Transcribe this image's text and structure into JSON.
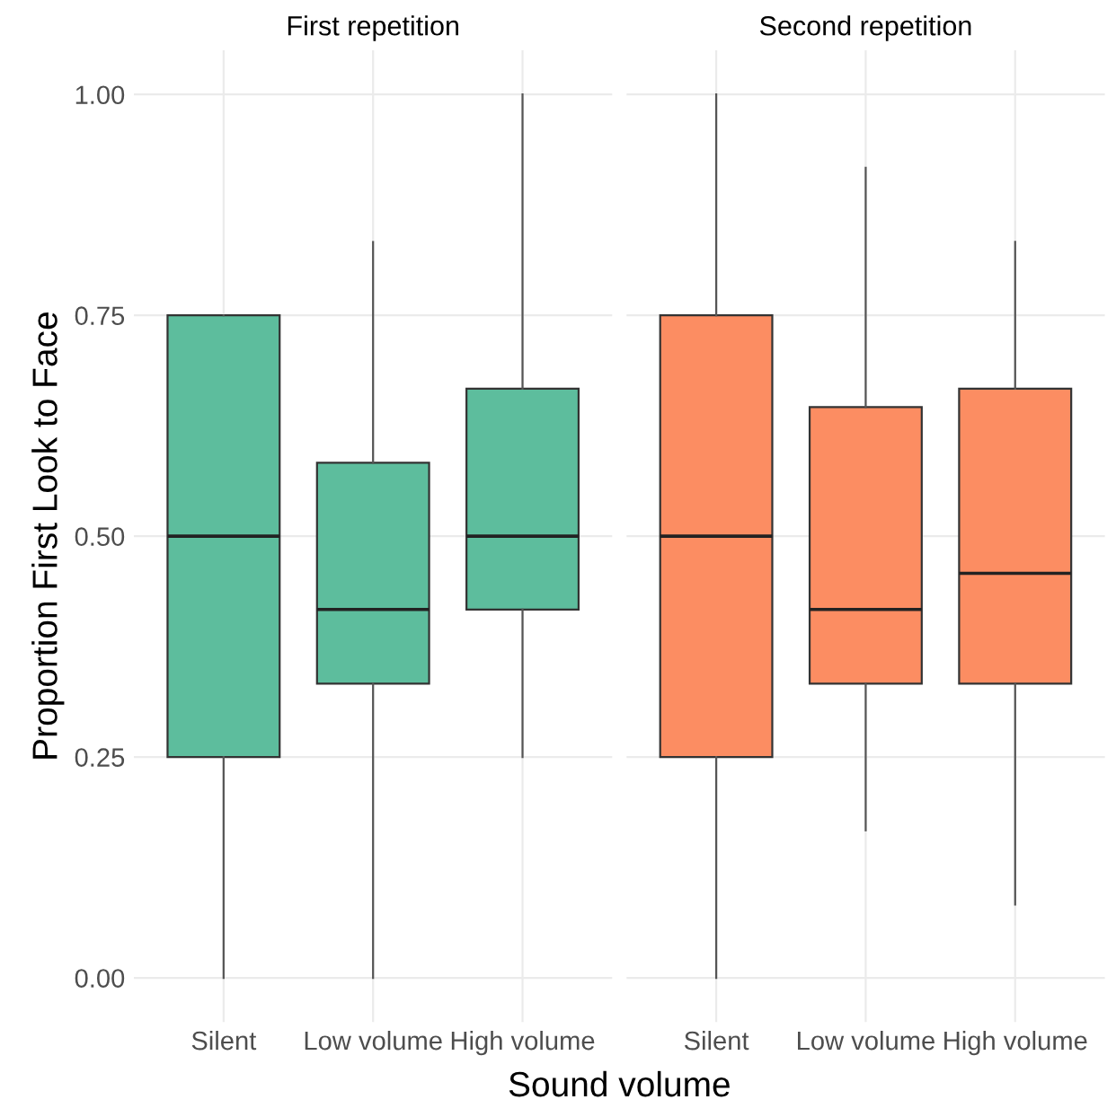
{
  "chart_data": [
    {
      "type": "box",
      "title": "First repetition",
      "ylabel": "Proportion First Look to Face",
      "xlabel": "Sound volume",
      "categories": [
        "Silent",
        "Low volume",
        "High volume"
      ],
      "color": "#5dbd9d",
      "ylim": [
        -0.05,
        1.05
      ],
      "yticks": [
        {
          "value": 0,
          "label": "0.00"
        },
        {
          "value": 0.25,
          "label": "0.25"
        },
        {
          "value": 0.5,
          "label": "0.50"
        },
        {
          "value": 0.75,
          "label": "0.75"
        },
        {
          "value": 1,
          "label": "1.00"
        }
      ],
      "grid": true,
      "boxes": [
        {
          "low": 0,
          "q1": 0.25,
          "median": 0.5,
          "q3": 0.75,
          "high": 0.75
        },
        {
          "low": 0,
          "q1": 0.333,
          "median": 0.417,
          "q3": 0.583,
          "high": 0.833
        },
        {
          "low": 0.25,
          "q1": 0.417,
          "median": 0.5,
          "q3": 0.667,
          "high": 1.0
        }
      ]
    },
    {
      "type": "box",
      "title": "Second repetition",
      "categories": [
        "Silent",
        "Low volume",
        "High volume"
      ],
      "color": "#fc8d62",
      "ylim": [
        -0.05,
        1.05
      ],
      "yticks": [
        0,
        0.25,
        0.5,
        0.75,
        1
      ],
      "grid": true,
      "tick_labels": "x",
      "boxes": [
        {
          "low": 0,
          "q1": 0.25,
          "median": 0.5,
          "q3": 0.75,
          "high": 1.0
        },
        {
          "low": 0.167,
          "q1": 0.333,
          "median": 0.417,
          "q3": 0.646,
          "high": 0.917
        },
        {
          "low": 0.083,
          "q1": 0.333,
          "median": 0.458,
          "q3": 0.667,
          "high": 0.833
        }
      ]
    }
  ]
}
